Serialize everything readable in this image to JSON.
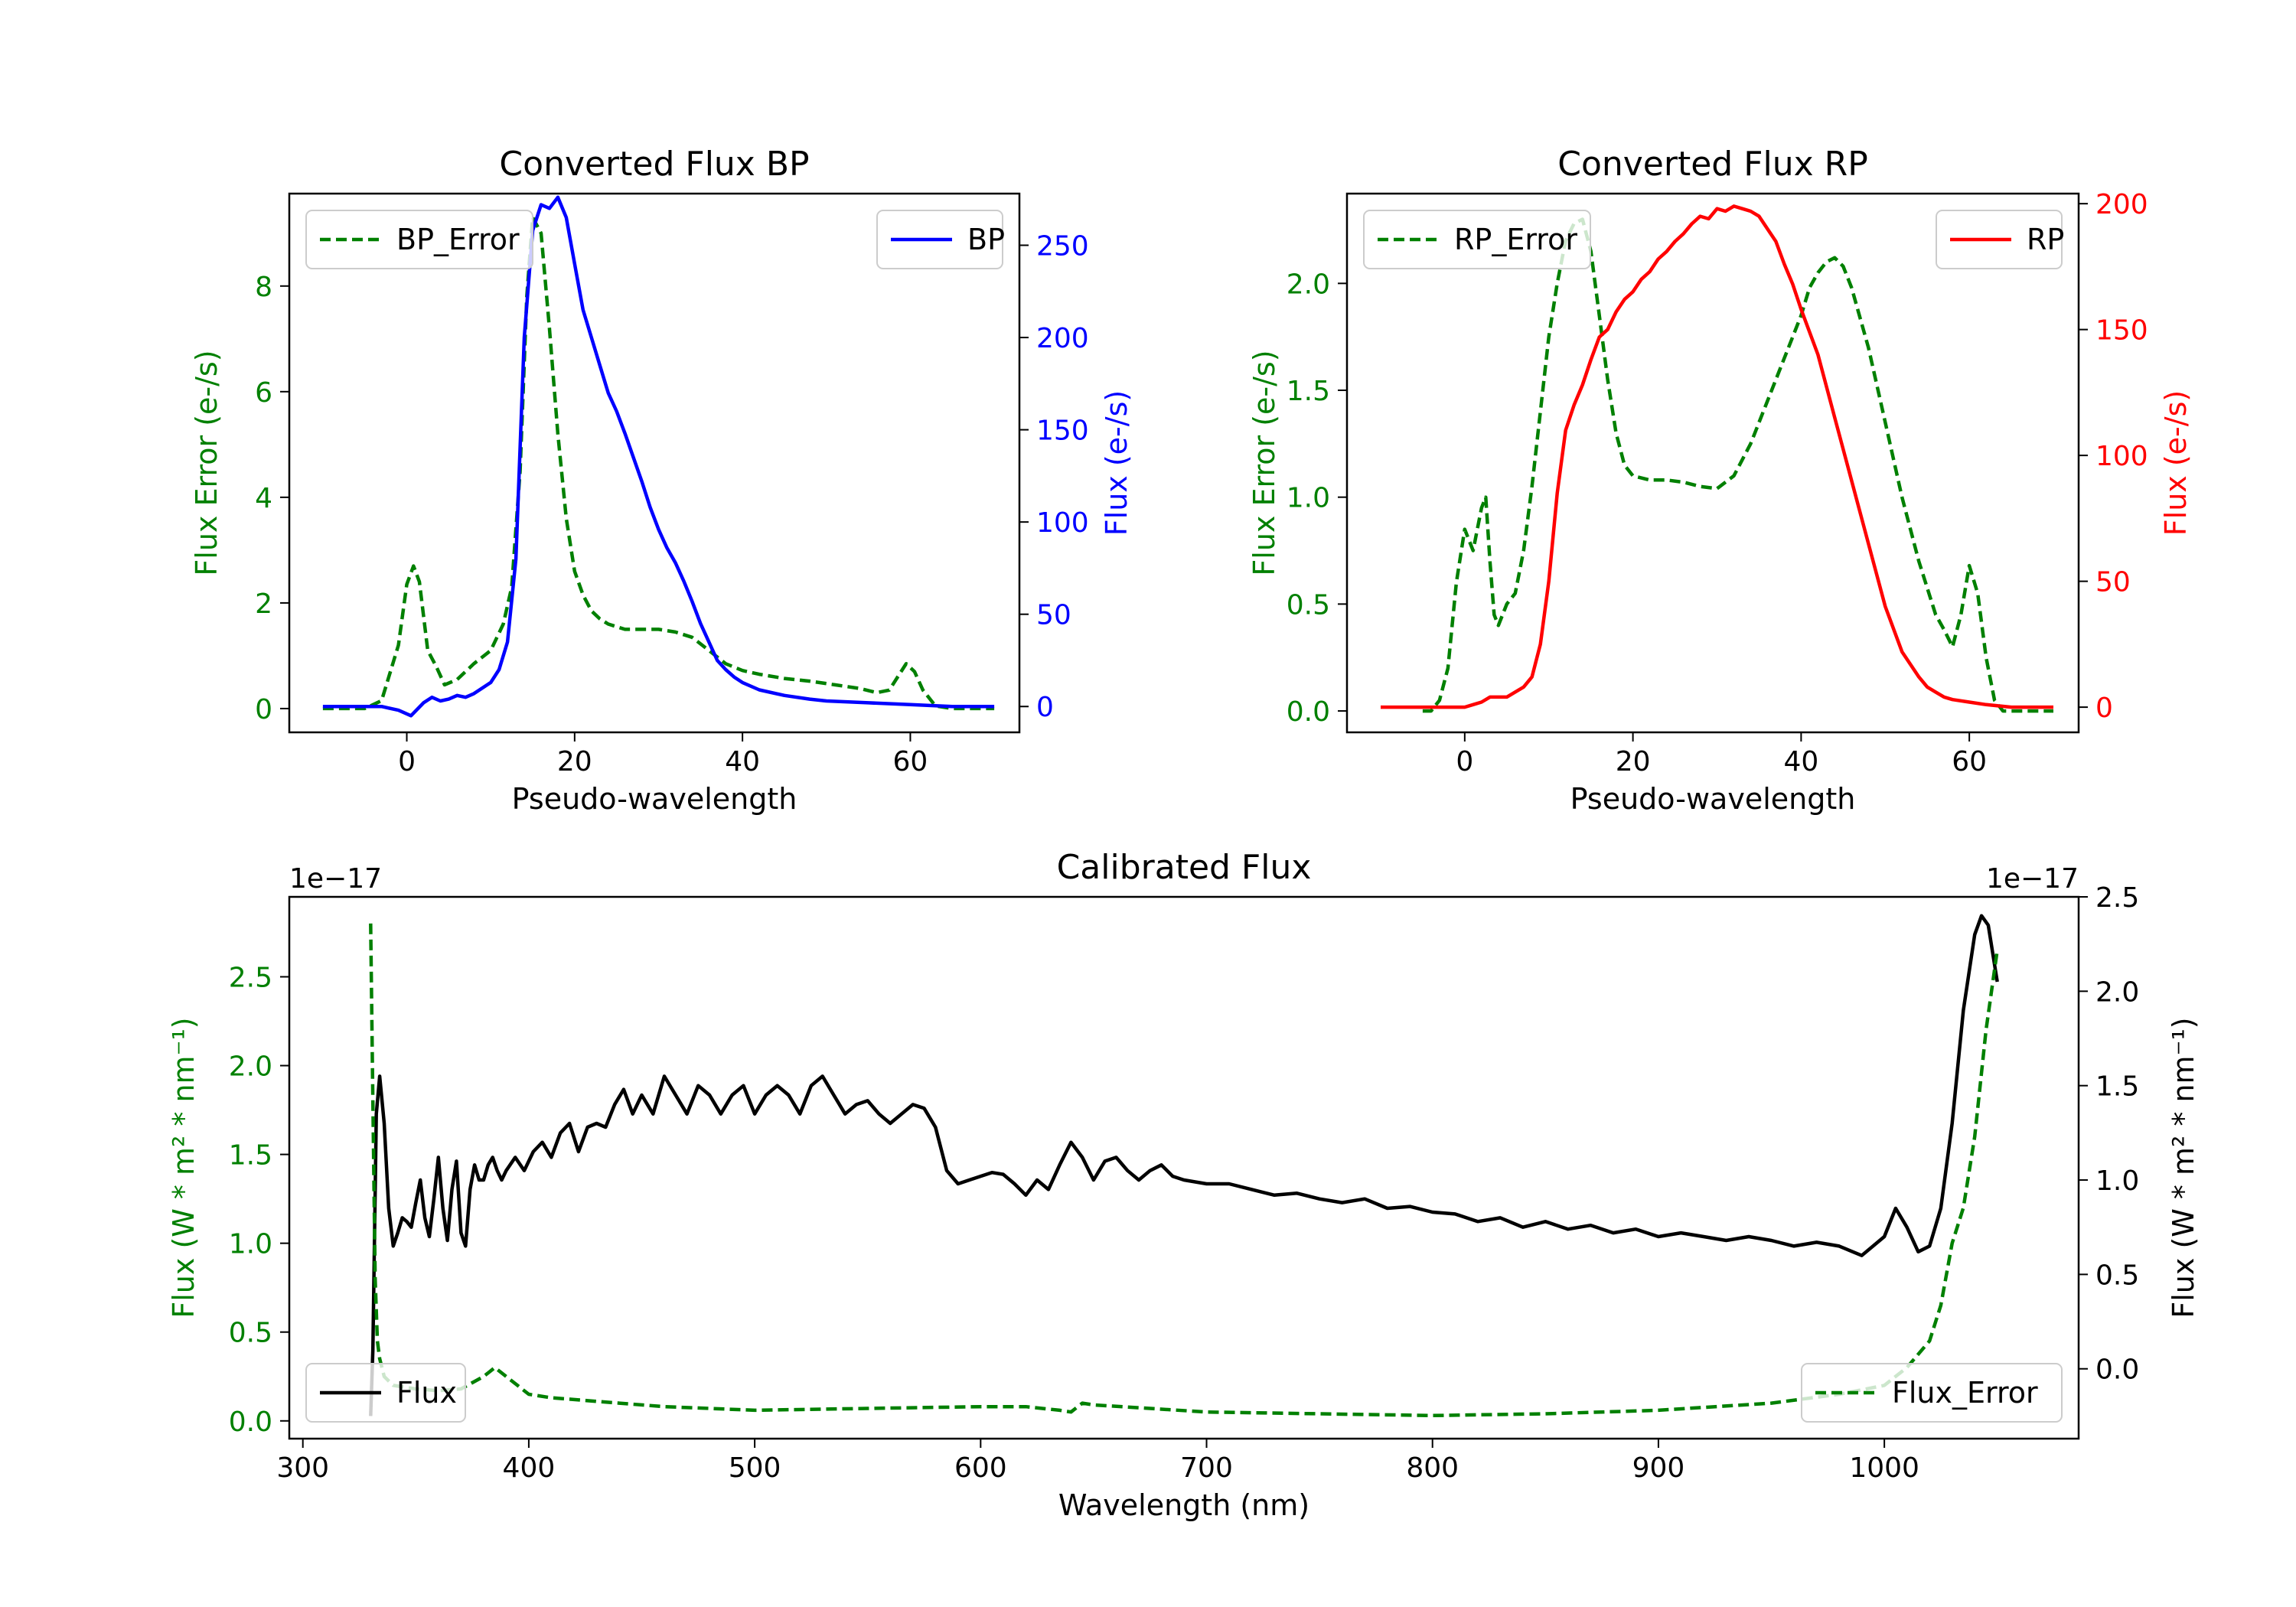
{
  "colors": {
    "green": "#008000",
    "blue": "#0000ff",
    "red": "#ff0000",
    "black": "#000000"
  },
  "chart_data": [
    {
      "id": "bp",
      "type": "line",
      "title": "Converted Flux BP",
      "xlabel": "Pseudo-wavelength",
      "xlim": [
        -14,
        73
      ],
      "xticks": [
        0,
        20,
        40,
        60
      ],
      "left_axis": {
        "label": "Flux Error (e-/s)",
        "color": "#008000",
        "ylim": [
          -0.45,
          9.75
        ],
        "ticks": [
          0,
          2,
          4,
          6,
          8
        ]
      },
      "right_axis": {
        "label": "Flux (e-/s)",
        "color": "#0000ff",
        "ylim": [
          -14,
          278
        ],
        "ticks": [
          0,
          50,
          100,
          150,
          200,
          250
        ]
      },
      "series": [
        {
          "name": "BP_Error",
          "axis": "left",
          "style": "dashed",
          "color": "#008000",
          "legend": "upper left",
          "x": [
            -10,
            -5,
            -3,
            -1,
            0,
            0.8,
            1.5,
            2.5,
            3.5,
            4.5,
            6,
            8,
            10,
            11.5,
            12.5,
            13.5,
            14.3,
            15,
            16,
            17,
            18,
            19,
            20,
            21,
            22,
            23,
            24,
            25,
            26,
            27,
            28,
            30,
            32,
            34,
            36,
            38,
            40,
            42,
            45,
            48,
            51,
            54,
            56,
            57.5,
            58.5,
            59.5,
            60.5,
            61.5,
            63,
            65,
            70
          ],
          "y": [
            0,
            0,
            0.15,
            1.2,
            2.35,
            2.7,
            2.4,
            1.1,
            0.8,
            0.45,
            0.55,
            0.85,
            1.1,
            1.6,
            2.3,
            4.5,
            7.8,
            9.3,
            9.0,
            7.2,
            5.2,
            3.6,
            2.6,
            2.15,
            1.85,
            1.7,
            1.6,
            1.55,
            1.5,
            1.5,
            1.5,
            1.5,
            1.45,
            1.35,
            1.1,
            0.85,
            0.72,
            0.65,
            0.57,
            0.52,
            0.45,
            0.38,
            0.3,
            0.35,
            0.6,
            0.85,
            0.7,
            0.35,
            0.05,
            0.0,
            0.0
          ]
        },
        {
          "name": "BP",
          "axis": "right",
          "style": "solid",
          "color": "#0000ff",
          "legend": "upper right",
          "x": [
            -10,
            -5,
            -3,
            -1,
            0.5,
            2,
            3,
            4,
            5,
            6,
            7,
            8,
            9,
            10,
            11,
            12,
            13,
            14,
            15,
            16,
            17,
            18,
            19,
            20,
            21,
            22,
            23,
            24,
            25,
            26,
            27,
            28,
            29,
            30,
            31,
            32,
            33,
            34,
            35,
            36,
            37,
            38,
            39,
            40,
            42,
            45,
            48,
            50,
            55,
            60,
            65,
            70
          ],
          "y": [
            0,
            0,
            0,
            -2,
            -5,
            2,
            5,
            3,
            4,
            6,
            5,
            7,
            10,
            13,
            20,
            35,
            80,
            200,
            258,
            272,
            270,
            276,
            265,
            240,
            215,
            200,
            185,
            170,
            160,
            148,
            135,
            122,
            108,
            96,
            86,
            78,
            68,
            57,
            45,
            35,
            25,
            20,
            16,
            13,
            9,
            6,
            4,
            3,
            2,
            1,
            0,
            0
          ]
        }
      ]
    },
    {
      "id": "rp",
      "type": "line",
      "title": "Converted Flux RP",
      "xlabel": "Pseudo-wavelength",
      "xlim": [
        -14,
        73
      ],
      "xticks": [
        0,
        20,
        40,
        60
      ],
      "left_axis": {
        "label": "Flux Error (e-/s)",
        "color": "#008000",
        "ylim": [
          -0.1,
          2.42
        ],
        "ticks": [
          0.0,
          0.5,
          1.0,
          1.5,
          2.0
        ]
      },
      "right_axis": {
        "label": "Flux (e-/s)",
        "color": "#ff0000",
        "ylim": [
          -10,
          204
        ],
        "ticks": [
          0,
          50,
          100,
          150,
          200
        ]
      },
      "series": [
        {
          "name": "RP_Error",
          "axis": "left",
          "style": "dashed",
          "color": "#008000",
          "legend": "upper left",
          "x": [
            -5,
            -4,
            -3,
            -2,
            -1,
            0,
            1,
            1.5,
            2,
            2.5,
            3,
            3.5,
            4,
            5,
            6,
            7,
            8,
            9,
            10,
            11,
            12,
            13,
            14,
            15,
            16,
            17,
            18,
            19,
            20,
            22,
            24,
            26,
            28,
            30,
            32,
            34,
            36,
            38,
            40,
            41,
            42,
            43,
            44,
            45,
            46,
            48,
            50,
            52,
            54,
            56,
            57,
            58,
            59,
            60,
            61,
            62,
            63,
            64,
            66,
            70
          ],
          "y": [
            0,
            0,
            0.05,
            0.2,
            0.6,
            0.85,
            0.75,
            0.85,
            0.95,
            1.0,
            0.7,
            0.45,
            0.4,
            0.5,
            0.55,
            0.75,
            1.05,
            1.4,
            1.75,
            2.0,
            2.2,
            2.28,
            2.3,
            2.15,
            1.85,
            1.55,
            1.3,
            1.15,
            1.1,
            1.08,
            1.08,
            1.07,
            1.05,
            1.04,
            1.1,
            1.25,
            1.45,
            1.65,
            1.85,
            1.98,
            2.05,
            2.1,
            2.12,
            2.08,
            1.98,
            1.7,
            1.35,
            1.0,
            0.7,
            0.45,
            0.38,
            0.3,
            0.45,
            0.68,
            0.55,
            0.25,
            0.05,
            0,
            0,
            0
          ]
        },
        {
          "name": "RP",
          "axis": "right",
          "style": "solid",
          "color": "#ff0000",
          "legend": "upper right",
          "x": [
            -10,
            -2,
            0,
            1,
            2,
            3,
            5,
            7,
            8,
            9,
            10,
            11,
            12,
            13,
            14,
            15,
            16,
            17,
            18,
            19,
            20,
            21,
            22,
            23,
            24,
            25,
            26,
            27,
            28,
            29,
            30,
            31,
            32,
            33,
            34,
            35,
            36,
            37,
            38,
            39,
            40,
            42,
            44,
            46,
            48,
            50,
            52,
            54,
            55,
            56,
            57,
            58,
            60,
            62,
            65,
            70
          ],
          "y": [
            0,
            0,
            0,
            1,
            2,
            4,
            4,
            8,
            12,
            25,
            50,
            85,
            110,
            120,
            128,
            138,
            147,
            150,
            157,
            162,
            165,
            170,
            173,
            178,
            181,
            185,
            188,
            192,
            195,
            194,
            198,
            197,
            199,
            198,
            197,
            195,
            190,
            185,
            176,
            168,
            158,
            140,
            115,
            90,
            65,
            40,
            22,
            12,
            8,
            6,
            4,
            3,
            2,
            1,
            0,
            0
          ]
        }
      ]
    },
    {
      "id": "calibrated",
      "type": "line",
      "title": "Calibrated Flux",
      "xlabel": "Wavelength (nm)",
      "xlim": [
        294,
        1086
      ],
      "xticks": [
        300,
        400,
        500,
        600,
        700,
        800,
        900,
        1000
      ],
      "left_axis": {
        "label": "Flux (W * m² * nm⁻¹)",
        "color": "#008000",
        "ylim": [
          -0.1,
          2.95
        ],
        "ticks": [
          0.0,
          0.5,
          1.0,
          1.5,
          2.0,
          2.5
        ],
        "offset_text": "1e−17"
      },
      "right_axis": {
        "label": "Flux (W * m² * nm⁻¹)",
        "color": "#000000",
        "ylim": [
          -0.37,
          2.5
        ],
        "ticks": [
          0.0,
          0.5,
          1.0,
          1.5,
          2.0,
          2.5
        ],
        "offset_text": "1e−17"
      },
      "series": [
        {
          "name": "Flux",
          "axis": "right",
          "style": "solid",
          "color": "#000000",
          "legend": "lower left",
          "x": [
            330,
            331,
            332.5,
            334,
            336,
            338,
            340,
            342,
            344,
            346,
            348,
            350,
            352,
            354,
            356,
            358,
            360,
            362,
            364,
            366,
            368,
            370,
            372,
            374,
            376,
            378,
            380,
            382,
            384,
            386,
            388,
            390,
            394,
            398,
            402,
            406,
            410,
            414,
            418,
            422,
            426,
            430,
            434,
            438,
            442,
            446,
            450,
            455,
            460,
            465,
            470,
            475,
            480,
            485,
            490,
            495,
            500,
            505,
            510,
            515,
            520,
            525,
            530,
            535,
            540,
            545,
            550,
            555,
            560,
            565,
            570,
            575,
            580,
            585,
            590,
            595,
            600,
            605,
            610,
            615,
            620,
            625,
            630,
            635,
            640,
            645,
            650,
            655,
            660,
            665,
            670,
            675,
            680,
            685,
            690,
            700,
            710,
            720,
            730,
            740,
            750,
            760,
            770,
            780,
            790,
            800,
            810,
            820,
            830,
            840,
            850,
            860,
            870,
            880,
            890,
            900,
            910,
            920,
            930,
            940,
            950,
            960,
            970,
            980,
            990,
            1000,
            1005,
            1010,
            1015,
            1020,
            1025,
            1030,
            1035,
            1040,
            1043,
            1046,
            1050
          ],
          "y": [
            -0.25,
            0.1,
            1.35,
            1.55,
            1.3,
            0.85,
            0.65,
            0.72,
            0.8,
            0.78,
            0.75,
            0.88,
            1.0,
            0.8,
            0.7,
            0.9,
            1.12,
            0.85,
            0.68,
            0.95,
            1.1,
            0.72,
            0.65,
            0.95,
            1.08,
            1.0,
            1.0,
            1.08,
            1.12,
            1.05,
            1.0,
            1.05,
            1.12,
            1.05,
            1.15,
            1.2,
            1.12,
            1.25,
            1.3,
            1.15,
            1.28,
            1.3,
            1.28,
            1.4,
            1.48,
            1.35,
            1.45,
            1.35,
            1.55,
            1.45,
            1.35,
            1.5,
            1.45,
            1.35,
            1.45,
            1.5,
            1.35,
            1.45,
            1.5,
            1.45,
            1.35,
            1.5,
            1.55,
            1.45,
            1.35,
            1.4,
            1.42,
            1.35,
            1.3,
            1.35,
            1.4,
            1.38,
            1.28,
            1.05,
            0.98,
            1.0,
            1.02,
            1.04,
            1.03,
            0.98,
            0.92,
            1.0,
            0.95,
            1.08,
            1.2,
            1.12,
            1.0,
            1.1,
            1.12,
            1.05,
            1.0,
            1.05,
            1.08,
            1.02,
            1.0,
            0.98,
            0.98,
            0.95,
            0.92,
            0.93,
            0.9,
            0.88,
            0.9,
            0.85,
            0.86,
            0.83,
            0.82,
            0.78,
            0.8,
            0.75,
            0.78,
            0.74,
            0.76,
            0.72,
            0.74,
            0.7,
            0.72,
            0.7,
            0.68,
            0.7,
            0.68,
            0.65,
            0.67,
            0.65,
            0.6,
            0.7,
            0.85,
            0.75,
            0.62,
            0.65,
            0.85,
            1.3,
            1.9,
            2.3,
            2.4,
            2.35,
            2.05
          ]
        },
        {
          "name": "Flux_Error",
          "axis": "left",
          "style": "dashed",
          "color": "#008000",
          "legend": "lower right",
          "x": [
            330,
            331,
            332,
            333,
            334,
            336,
            340,
            350,
            360,
            370,
            380,
            385,
            390,
            395,
            400,
            410,
            420,
            440,
            460,
            480,
            500,
            550,
            600,
            620,
            635,
            640,
            645,
            650,
            700,
            750,
            800,
            850,
            900,
            950,
            980,
            1000,
            1010,
            1020,
            1025,
            1030,
            1035,
            1040,
            1045,
            1050
          ],
          "y": [
            2.8,
            1.8,
            0.8,
            0.45,
            0.35,
            0.25,
            0.2,
            0.18,
            0.17,
            0.18,
            0.25,
            0.3,
            0.25,
            0.2,
            0.15,
            0.13,
            0.12,
            0.1,
            0.08,
            0.07,
            0.06,
            0.07,
            0.08,
            0.08,
            0.06,
            0.05,
            0.1,
            0.09,
            0.05,
            0.04,
            0.03,
            0.04,
            0.06,
            0.1,
            0.15,
            0.2,
            0.3,
            0.45,
            0.65,
            1.0,
            1.2,
            1.6,
            2.2,
            2.65
          ]
        }
      ]
    }
  ]
}
